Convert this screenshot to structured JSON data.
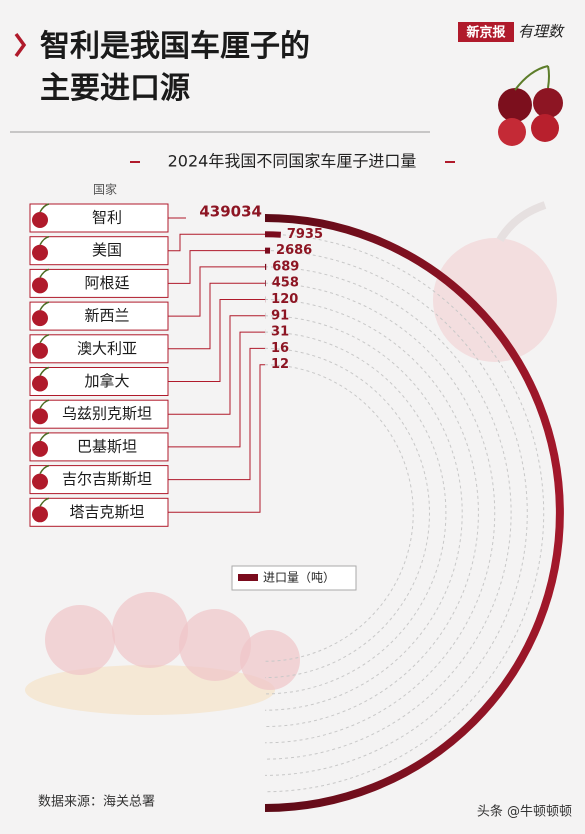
{
  "chart_data": {
    "type": "radial_bar",
    "title": "智利是我国车厘子的主要进口源",
    "subtitle": "2024年我国不同国家车厘子进口量",
    "category_header": "国家",
    "categories": [
      "智利",
      "美国",
      "阿根廷",
      "新西兰",
      "澳大利亚",
      "加拿大",
      "乌兹别克斯坦",
      "巴基斯坦",
      "吉尔吉斯斯坦",
      "塔吉克斯坦"
    ],
    "series": [
      {
        "name": "进口量（吨）",
        "color": "#7a0b1d",
        "values": [
          439034,
          7935,
          2686,
          689,
          458,
          120,
          91,
          31,
          16,
          12
        ]
      }
    ],
    "xlim": [
      0,
      439034
    ],
    "source": "数据来源：海关总署"
  },
  "branding": {
    "publisher": "新京报",
    "column": "有理数",
    "watermark": "头条 @牛顿顿顿"
  }
}
